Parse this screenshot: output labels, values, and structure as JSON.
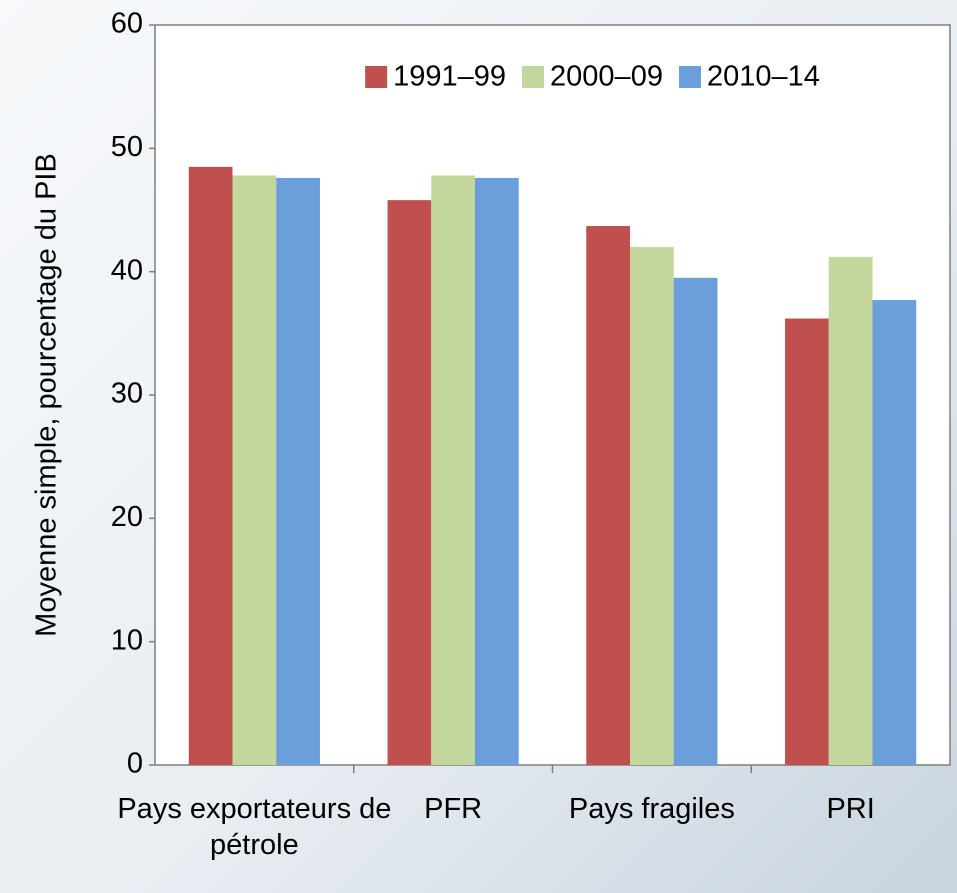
{
  "chart_data": {
    "type": "bar",
    "y_label": "Moyenne simple, pourcentage du PIB",
    "categories": [
      "Pays exportateurs de pétrole",
      "PFR",
      "Pays fragiles",
      "PRI"
    ],
    "series": [
      {
        "name": "1991–99",
        "color": "#c0504d",
        "values": [
          48.5,
          45.8,
          43.7,
          36.2
        ]
      },
      {
        "name": "2000–09",
        "color": "#c3d69b",
        "values": [
          47.8,
          47.8,
          42.0,
          41.2
        ]
      },
      {
        "name": "2010–14",
        "color": "#6a9fdb",
        "values": [
          47.6,
          47.6,
          39.5,
          37.7
        ]
      }
    ],
    "ylim": [
      0,
      60
    ],
    "yticks": [
      0,
      10,
      20,
      30,
      40,
      50,
      60
    ],
    "legend": "top",
    "grid": false
  }
}
